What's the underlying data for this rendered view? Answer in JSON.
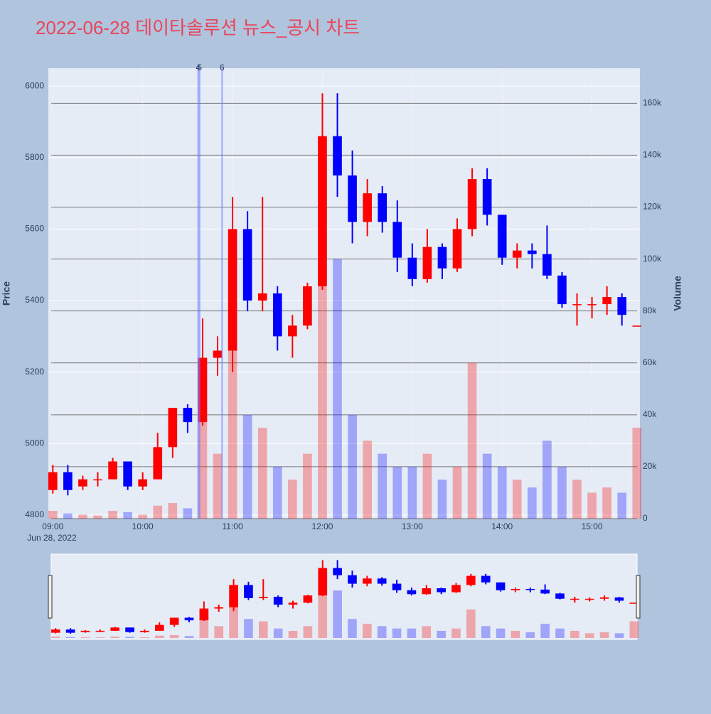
{
  "chart_data": {
    "type": "candlestick",
    "title": "2022-06-28 데이타솔루션 뉴스_공시 차트",
    "y_label": "Price",
    "y2_label": "Volume",
    "x_date_label": "Jun 28, 2022",
    "increasing_color": "#ff0000",
    "decreasing_color": "#0000ff",
    "x": [
      "09:00",
      "09:10",
      "09:20",
      "09:30",
      "09:40",
      "09:50",
      "10:00",
      "10:10",
      "10:20",
      "10:30",
      "10:40",
      "10:50",
      "11:00",
      "11:10",
      "11:20",
      "11:30",
      "11:40",
      "11:50",
      "12:00",
      "12:10",
      "12:20",
      "12:30",
      "12:40",
      "12:50",
      "13:00",
      "13:10",
      "13:20",
      "13:30",
      "13:40",
      "13:50",
      "14:00",
      "14:10",
      "14:20",
      "14:30",
      "14:40",
      "14:50",
      "15:00",
      "15:10",
      "15:20",
      "15:30"
    ],
    "open": [
      4870,
      4920,
      4880,
      4900,
      4900,
      4950,
      4880,
      4900,
      4990,
      5100,
      5060,
      5240,
      5260,
      5600,
      5400,
      5420,
      5300,
      5330,
      5440,
      5860,
      5750,
      5620,
      5700,
      5620,
      5520,
      5460,
      5550,
      5490,
      5600,
      5740,
      5640,
      5520,
      5540,
      5530,
      5470,
      5390,
      5390,
      5390,
      5410,
      5330
    ],
    "high": [
      4940,
      4940,
      4910,
      4920,
      4960,
      4950,
      4920,
      5030,
      5100,
      5110,
      5350,
      5300,
      5690,
      5650,
      5690,
      5440,
      5360,
      5450,
      5980,
      5980,
      5820,
      5740,
      5720,
      5680,
      5560,
      5600,
      5560,
      5630,
      5770,
      5770,
      5640,
      5560,
      5560,
      5610,
      5480,
      5420,
      5410,
      5440,
      5420,
      5330
    ],
    "low": [
      4860,
      4855,
      4870,
      4880,
      4900,
      4870,
      4870,
      4900,
      4960,
      5030,
      5050,
      5190,
      5200,
      5370,
      5370,
      5260,
      5240,
      5320,
      5430,
      5690,
      5560,
      5580,
      5590,
      5480,
      5440,
      5450,
      5460,
      5480,
      5580,
      5610,
      5500,
      5490,
      5490,
      5460,
      5380,
      5330,
      5350,
      5360,
      5330,
      5330
    ],
    "close": [
      4920,
      4870,
      4900,
      4900,
      4950,
      4880,
      4900,
      4990,
      5100,
      5060,
      5240,
      5260,
      5600,
      5400,
      5420,
      5300,
      5330,
      5440,
      5860,
      5750,
      5620,
      5700,
      5620,
      5520,
      5460,
      5550,
      5490,
      5600,
      5740,
      5640,
      5520,
      5540,
      5530,
      5470,
      5390,
      5390,
      5390,
      5410,
      5360,
      5330
    ],
    "volume": [
      3000,
      2000,
      1500,
      1200,
      3000,
      2500,
      1500,
      5000,
      6000,
      4000,
      60000,
      25000,
      80000,
      40000,
      35000,
      20000,
      15000,
      25000,
      140000,
      100000,
      40000,
      30000,
      25000,
      20000,
      20000,
      25000,
      15000,
      20000,
      60000,
      25000,
      20000,
      15000,
      12000,
      30000,
      20000,
      15000,
      10000,
      12000,
      10000,
      35000
    ],
    "news_markers": [
      {
        "x": "10:37",
        "label": "4"
      },
      {
        "x": "10:38",
        "label": "5"
      },
      {
        "x": "10:53",
        "label": "6"
      }
    ],
    "xlim": [
      "08:57",
      "15:32"
    ],
    "xticks": [
      "09:00",
      "10:00",
      "11:00",
      "12:00",
      "13:00",
      "14:00",
      "15:00"
    ],
    "ylim": [
      4790,
      6050
    ],
    "yticks": [
      4800,
      5000,
      5200,
      5400,
      5600,
      5800,
      6000
    ],
    "y2lim": [
      0,
      173500
    ],
    "y2ticks": [
      0,
      {
        "value": 20000,
        "label": "20k"
      },
      {
        "value": 40000,
        "label": "40k"
      },
      {
        "value": 60000,
        "label": "60k"
      },
      {
        "value": 80000,
        "label": "80k"
      },
      {
        "value": 100000,
        "label": "100k"
      },
      {
        "value": 120000,
        "label": "120k"
      },
      {
        "value": 140000,
        "label": "140k"
      },
      {
        "value": 160000,
        "label": "160k"
      }
    ],
    "grid": true,
    "rangeslider": true
  }
}
